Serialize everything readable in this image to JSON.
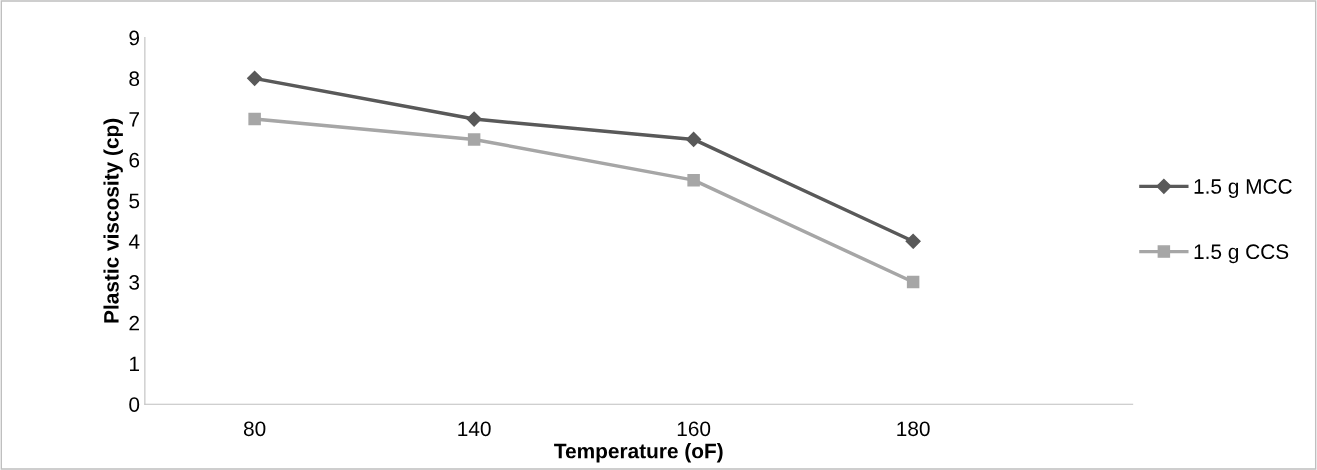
{
  "chart_data": {
    "type": "line",
    "xlabel": "Temperature (oF)",
    "ylabel": "Plastic viscosity (cp)",
    "categories": [
      "80",
      "140",
      "160",
      "180"
    ],
    "series": [
      {
        "name": "1.5 g MCC",
        "color": "#595959",
        "marker": "diamond",
        "values": [
          8,
          7,
          6.5,
          4
        ]
      },
      {
        "name": "1.5 g CCS",
        "color": "#a6a6a6",
        "marker": "square",
        "values": [
          7,
          6.5,
          5.5,
          3
        ]
      }
    ],
    "ylim": [
      0,
      9
    ],
    "yticks": [
      0,
      1,
      2,
      3,
      4,
      5,
      6,
      7,
      8,
      9
    ],
    "grid": false,
    "legend": "right",
    "line_style": "solid"
  }
}
